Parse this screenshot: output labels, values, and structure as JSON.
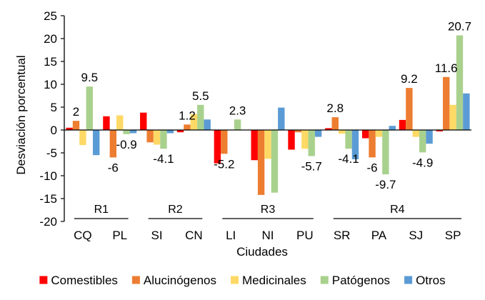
{
  "chart_data": {
    "type": "bar",
    "title": "",
    "xlabel": "Ciudades",
    "ylabel": "Desviación porcentual",
    "ylim": [
      -20,
      25
    ],
    "yticks": [
      -20,
      -15,
      -10,
      -5,
      0,
      5,
      10,
      15,
      20,
      25
    ],
    "grid": false,
    "legend_position": "bottom",
    "categories": [
      "CQ",
      "PL",
      "SI",
      "CN",
      "LI",
      "NI",
      "PU",
      "SR",
      "PA",
      "SJ",
      "SP"
    ],
    "groups": [
      {
        "name": "R1",
        "categories": [
          "CQ",
          "PL"
        ]
      },
      {
        "name": "R2",
        "categories": [
          "SI",
          "CN"
        ]
      },
      {
        "name": "R3",
        "categories": [
          "LI",
          "NI",
          "PU"
        ]
      },
      {
        "name": "R4",
        "categories": [
          "SR",
          "PA",
          "SJ",
          "SP"
        ]
      }
    ],
    "series": [
      {
        "name": "Comestibles",
        "color": "#FF0000",
        "values": [
          0.5,
          3.0,
          3.8,
          -0.5,
          -7.3,
          -6.6,
          -4.3,
          0.4,
          -1.8,
          2.2,
          -0.3
        ]
      },
      {
        "name": "Alucinógenos",
        "color": "#ED7D31",
        "values": [
          2.0,
          -6.0,
          -2.7,
          1.2,
          -5.2,
          -14.2,
          -0.5,
          2.8,
          -6.0,
          9.2,
          11.6
        ]
      },
      {
        "name": "Medicinales",
        "color": "#FFD966",
        "values": [
          -3.3,
          3.2,
          -3.2,
          3.5,
          0.0,
          -6.3,
          -4.1,
          -0.8,
          -1.5,
          -1.5,
          5.5
        ]
      },
      {
        "name": "Patógenos",
        "color": "#A9D18E",
        "values": [
          9.5,
          -0.9,
          -4.1,
          5.5,
          2.3,
          -13.7,
          -5.7,
          -4.1,
          -9.7,
          -4.9,
          20.7
        ]
      },
      {
        "name": "Otros",
        "color": "#5B9BD5",
        "values": [
          -5.5,
          -0.7,
          -0.7,
          2.3,
          0.0,
          4.9,
          -1.5,
          -6.4,
          0.9,
          -3.0,
          8.0
        ]
      }
    ],
    "data_labels": [
      {
        "category": "CQ",
        "series": "Alucinógenos",
        "text": "2"
      },
      {
        "category": "CQ",
        "series": "Patógenos",
        "text": "9.5"
      },
      {
        "category": "PL",
        "series": "Alucinógenos",
        "text": "-6"
      },
      {
        "category": "PL",
        "series": "Patógenos",
        "text": "-0.9"
      },
      {
        "category": "SI",
        "series": "Patógenos",
        "text": "-4.1"
      },
      {
        "category": "CN",
        "series": "Alucinógenos",
        "text": "1.2"
      },
      {
        "category": "CN",
        "series": "Patógenos",
        "text": "5.5"
      },
      {
        "category": "LI",
        "series": "Alucinógenos",
        "text": "-5.2"
      },
      {
        "category": "LI",
        "series": "Patógenos",
        "text": "2.3"
      },
      {
        "category": "PU",
        "series": "Patógenos",
        "text": "-5.7"
      },
      {
        "category": "SR",
        "series": "Alucinógenos",
        "text": "2.8"
      },
      {
        "category": "SR",
        "series": "Patógenos",
        "text": "-4.1"
      },
      {
        "category": "PA",
        "series": "Alucinógenos",
        "text": "-6"
      },
      {
        "category": "PA",
        "series": "Patógenos",
        "text": "-9.7"
      },
      {
        "category": "SJ",
        "series": "Alucinógenos",
        "text": "9.2"
      },
      {
        "category": "SJ",
        "series": "Patógenos",
        "text": "-4.9"
      },
      {
        "category": "SP",
        "series": "Alucinógenos",
        "text": "11.6"
      },
      {
        "category": "SP",
        "series": "Patógenos",
        "text": "20.7"
      }
    ]
  }
}
